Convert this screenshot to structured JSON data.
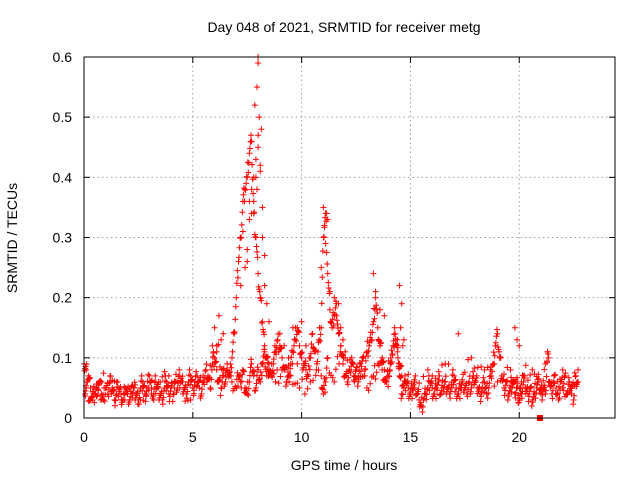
{
  "chart_data": {
    "type": "scatter",
    "title": "Day 048 of 2021, SRMTID for receiver metg",
    "xlabel": "GPS time / hours",
    "ylabel": "SRMTID / TECUs",
    "xlim": [
      0,
      24.4
    ],
    "ylim": [
      0,
      0.6
    ],
    "xticks": [
      0,
      5,
      10,
      15,
      20
    ],
    "yticks": [
      0,
      0.1,
      0.2,
      0.3,
      0.4,
      0.5,
      0.6
    ],
    "ytick_labels": [
      "0",
      "0.1",
      "0.2",
      "0.3",
      "0.4",
      "0.5",
      "0.6"
    ],
    "grid": true,
    "marker": "+",
    "color": "#ff0000",
    "series": [
      {
        "name": "SRMTID",
        "x": [
          0.0,
          0.1,
          0.2,
          0.3,
          0.4,
          0.5,
          0.6,
          0.7,
          0.8,
          0.9,
          1.0,
          1.1,
          1.2,
          1.3,
          1.4,
          1.5,
          1.6,
          1.7,
          1.8,
          1.9,
          2.0,
          2.1,
          2.2,
          2.3,
          2.4,
          2.5,
          2.6,
          2.7,
          2.8,
          2.9,
          3.0,
          3.1,
          3.2,
          3.3,
          3.4,
          3.5,
          3.6,
          3.7,
          3.8,
          3.9,
          4.0,
          4.1,
          4.2,
          4.3,
          4.4,
          4.5,
          4.6,
          4.7,
          4.8,
          4.9,
          5.0,
          5.1,
          5.2,
          5.3,
          5.4,
          5.5,
          5.6,
          5.7,
          5.8,
          5.9,
          6.0,
          6.1,
          6.2,
          6.3,
          6.4,
          6.5,
          6.6,
          6.7,
          6.8,
          6.9,
          7.0,
          7.1,
          7.2,
          7.3,
          7.4,
          7.5,
          7.6,
          7.7,
          7.8,
          7.9,
          8.0,
          8.1,
          8.2,
          8.3,
          8.4,
          8.5,
          8.6,
          8.7,
          8.8,
          8.9,
          9.0,
          9.1,
          9.2,
          9.3,
          9.4,
          9.5,
          9.6,
          9.7,
          9.8,
          9.9,
          10.0,
          10.1,
          10.2,
          10.3,
          10.4,
          10.5,
          10.6,
          10.7,
          10.8,
          10.9,
          11.0,
          11.1,
          11.2,
          11.3,
          11.4,
          11.5,
          11.6,
          11.7,
          11.8,
          11.9,
          12.0,
          12.1,
          12.2,
          12.3,
          12.4,
          12.5,
          12.6,
          12.7,
          12.8,
          12.9,
          13.0,
          13.1,
          13.2,
          13.3,
          13.4,
          13.5,
          13.6,
          13.7,
          13.8,
          13.9,
          14.0,
          14.1,
          14.2,
          14.3,
          14.4,
          14.5,
          14.6,
          14.7,
          14.8,
          14.9,
          15.0,
          15.1,
          15.2,
          15.3,
          15.4,
          15.5,
          15.6,
          15.7,
          15.8,
          15.9,
          16.0,
          16.1,
          16.2,
          16.3,
          16.4,
          16.5,
          16.6,
          16.7,
          16.8,
          16.9,
          17.0,
          17.1,
          17.2,
          17.3,
          17.4,
          17.5,
          17.6,
          17.7,
          17.8,
          17.9,
          18.0,
          18.1,
          18.2,
          18.3,
          18.4,
          18.5,
          18.6,
          18.7,
          18.8,
          18.9,
          19.0,
          19.1,
          19.2,
          19.3,
          19.4,
          19.5,
          19.6,
          19.7,
          19.8,
          19.9,
          20.0,
          20.1,
          20.2,
          20.3,
          20.4,
          20.5,
          20.6,
          20.7,
          20.8,
          20.9,
          21.0,
          21.1,
          21.2,
          21.3,
          21.4,
          21.5,
          21.6,
          21.7,
          21.8,
          21.9,
          22.0,
          22.1,
          22.2,
          22.3,
          22.4,
          22.5,
          22.6,
          22.7,
          0.05,
          0.1,
          0.3,
          0.5,
          0.8,
          1.2,
          1.6,
          2.1,
          2.6,
          3.1,
          3.5,
          3.9,
          4.4,
          4.9,
          5.5,
          6.1,
          6.4,
          6.8,
          7.0,
          7.1,
          7.2,
          7.3,
          7.4,
          7.5,
          7.6,
          7.7,
          7.8,
          7.9,
          8.0,
          8.1,
          8.2,
          8.3,
          8.4,
          8.5,
          8.8,
          9.1,
          9.5,
          9.9,
          10.4,
          10.9,
          11.0,
          11.1,
          11.2,
          11.5,
          11.8,
          12.2,
          12.6,
          13.0,
          13.3,
          13.5,
          13.7,
          13.9,
          14.1,
          14.4,
          14.5,
          14.6,
          14.8,
          15.2,
          16.0,
          16.6,
          17.2,
          17.8,
          18.4,
          19.0,
          19.6,
          19.8,
          20.0,
          20.2,
          20.6,
          21.0,
          21.2,
          21.5,
          22.0,
          22.4,
          22.7
        ],
        "y": [
          0.09,
          0.08,
          0.07,
          0.05,
          0.03,
          0.04,
          0.05,
          0.06,
          0.04,
          0.03,
          0.05,
          0.04,
          0.06,
          0.05,
          0.03,
          0.04,
          0.05,
          0.04,
          0.03,
          0.05,
          0.04,
          0.03,
          0.04,
          0.05,
          0.04,
          0.03,
          0.05,
          0.06,
          0.04,
          0.05,
          0.07,
          0.05,
          0.04,
          0.06,
          0.05,
          0.04,
          0.03,
          0.05,
          0.06,
          0.04,
          0.05,
          0.04,
          0.06,
          0.05,
          0.07,
          0.06,
          0.05,
          0.04,
          0.06,
          0.07,
          0.05,
          0.06,
          0.07,
          0.05,
          0.04,
          0.06,
          0.08,
          0.07,
          0.05,
          0.09,
          0.1,
          0.08,
          0.06,
          0.05,
          0.07,
          0.06,
          0.08,
          0.07,
          0.1,
          0.14,
          0.2,
          0.26,
          0.3,
          0.36,
          0.38,
          0.4,
          0.44,
          0.46,
          0.34,
          0.3,
          0.24,
          0.2,
          0.16,
          0.12,
          0.1,
          0.08,
          0.07,
          0.09,
          0.11,
          0.13,
          0.12,
          0.1,
          0.08,
          0.06,
          0.07,
          0.09,
          0.11,
          0.13,
          0.15,
          0.12,
          0.1,
          0.09,
          0.08,
          0.07,
          0.1,
          0.14,
          0.11,
          0.09,
          0.13,
          0.15,
          0.3,
          0.34,
          0.24,
          0.18,
          0.15,
          0.17,
          0.19,
          0.14,
          0.12,
          0.09,
          0.07,
          0.06,
          0.08,
          0.1,
          0.07,
          0.08,
          0.06,
          0.09,
          0.1,
          0.08,
          0.11,
          0.12,
          0.13,
          0.16,
          0.2,
          0.15,
          0.12,
          0.1,
          0.08,
          0.06,
          0.07,
          0.09,
          0.12,
          0.14,
          0.11,
          0.09,
          0.07,
          0.05,
          0.06,
          0.05,
          0.04,
          0.05,
          0.06,
          0.04,
          0.03,
          0.02,
          0.03,
          0.04,
          0.05,
          0.06,
          0.05,
          0.04,
          0.05,
          0.06,
          0.04,
          0.05,
          0.06,
          0.05,
          0.04,
          0.06,
          0.07,
          0.05,
          0.04,
          0.05,
          0.06,
          0.05,
          0.04,
          0.06,
          0.05,
          0.07,
          0.06,
          0.05,
          0.04,
          0.05,
          0.06,
          0.04,
          0.05,
          0.07,
          0.09,
          0.12,
          0.14,
          0.1,
          0.07,
          0.05,
          0.06,
          0.04,
          0.05,
          0.06,
          0.04,
          0.05,
          0.03,
          0.04,
          0.06,
          0.05,
          0.04,
          0.05,
          0.03,
          0.04,
          0.05,
          0.06,
          0.04,
          0.05,
          0.04,
          0.11,
          0.06,
          0.04,
          0.07,
          0.05,
          0.03,
          0.06,
          0.05,
          0.07,
          0.04,
          0.06,
          0.05,
          0.03,
          0.07,
          0.06,
          0.04,
          0.05,
          0.03,
          0.04,
          0.06,
          0.07,
          0.04,
          0.05,
          0.03,
          0.04,
          0.06,
          0.07,
          0.05,
          0.03,
          0.06,
          0.12,
          0.08,
          0.06,
          0.05,
          0.07,
          0.06,
          0.08,
          0.05,
          0.04,
          0.06,
          0.09,
          0.07,
          0.05,
          0.08,
          0.06,
          0.09,
          0.11,
          0.07,
          0.09,
          0.06,
          0.08,
          0.07,
          0.05,
          0.06,
          0.07,
          0.04,
          0.06,
          0.1,
          0.06,
          0.12,
          0.08,
          0.07,
          0.05,
          0.07,
          0.09,
          0.08,
          0.06,
          0.1,
          0.13,
          0.07,
          0.04,
          0.06,
          0.05,
          0.07,
          0.09,
          0.04,
          0.1,
          0.08,
          0.06,
          0.08,
          0.06,
          0.05,
          0.07,
          0.08,
          0.04,
          0.09,
          0.06,
          0.05,
          0.04,
          0.08
        ]
      }
    ],
    "extra_points": {
      "x": [
        7.3,
        7.5,
        7.6,
        7.7,
        7.8,
        7.9,
        8.0,
        8.1,
        8.2,
        8.3,
        8.0,
        7.95,
        8.05,
        7.85,
        8.15,
        7.6,
        7.4,
        7.2,
        8.4,
        8.5,
        7.9,
        8.0,
        7.95,
        8.1,
        7.7,
        8.2,
        7.5,
        8.3,
        7.8,
        8.0,
        11.0,
        11.05,
        11.1,
        11.15,
        11.2,
        10.9,
        11.3,
        11.5,
        11.6,
        11.7,
        11.8,
        11.9,
        12.0,
        13.3,
        13.4,
        13.6,
        13.8,
        14.5,
        14.6,
        14.7,
        14.55,
        14.65,
        9.0,
        9.2,
        9.4,
        9.6,
        9.8,
        10.0,
        10.2,
        10.4,
        6.0,
        6.2,
        6.3,
        6.1,
        5.9,
        6.4,
        17.2,
        19.8,
        19.9,
        20.0,
        21.3,
        22.0
      ],
      "y": [
        0.31,
        0.28,
        0.36,
        0.38,
        0.4,
        0.43,
        0.47,
        0.42,
        0.35,
        0.27,
        0.59,
        0.55,
        0.5,
        0.52,
        0.48,
        0.33,
        0.25,
        0.22,
        0.19,
        0.16,
        0.4,
        0.45,
        0.38,
        0.41,
        0.34,
        0.3,
        0.26,
        0.22,
        0.36,
        0.6,
        0.35,
        0.32,
        0.29,
        0.34,
        0.33,
        0.25,
        0.21,
        0.2,
        0.17,
        0.19,
        0.15,
        0.13,
        0.11,
        0.24,
        0.21,
        0.18,
        0.17,
        0.22,
        0.19,
        0.13,
        0.15,
        0.12,
        0.14,
        0.12,
        0.1,
        0.15,
        0.09,
        0.16,
        0.12,
        0.1,
        0.15,
        0.17,
        0.13,
        0.11,
        0.12,
        0.14,
        0.14,
        0.15,
        0.13,
        0.12,
        0.11,
        0.08
      ]
    },
    "outlier": {
      "x": 20.95,
      "y": 0.0
    }
  }
}
